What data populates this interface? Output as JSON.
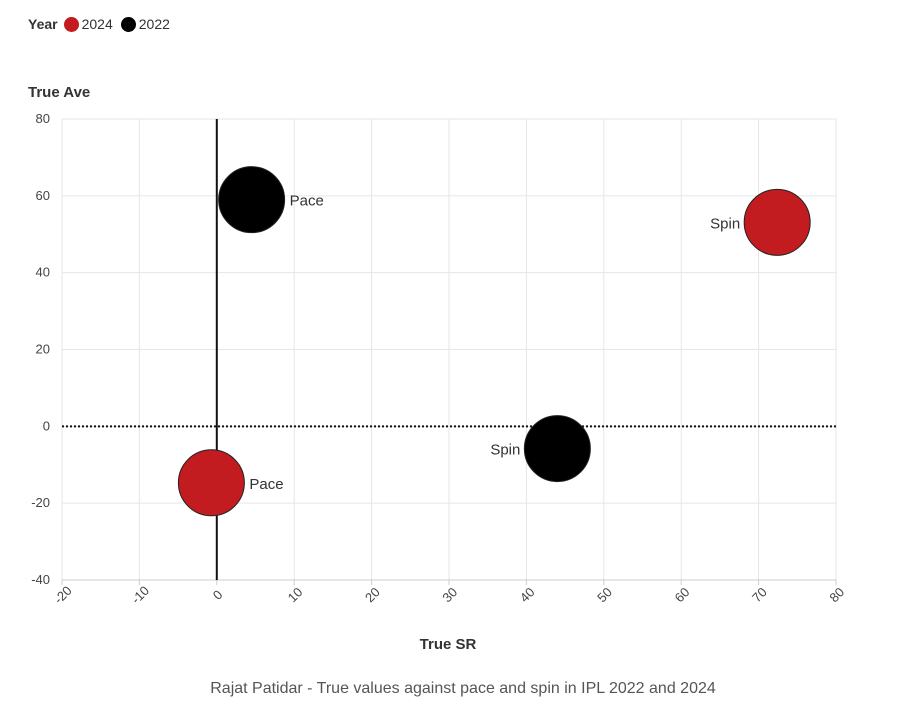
{
  "chart_data": {
    "type": "scatter",
    "xlabel": "True SR",
    "ylabel": "True Ave",
    "xlim": [
      -20,
      80
    ],
    "ylim": [
      -40,
      80
    ],
    "x_ticks": [
      -20,
      -10,
      0,
      10,
      20,
      30,
      40,
      50,
      60,
      70,
      80
    ],
    "y_ticks": [
      -40,
      -20,
      0,
      20,
      40,
      60,
      80
    ],
    "legend": {
      "title": "Year",
      "placement": "top-left",
      "entries": [
        {
          "label": "2024",
          "color": "#c21b20"
        },
        {
          "label": "2022",
          "color": "#000000"
        }
      ]
    },
    "series": [
      {
        "name": "2024",
        "color": "#c21b20",
        "points": [
          {
            "label": "Pace",
            "x": -0.7,
            "y": -14.7
          },
          {
            "label": "Spin",
            "x": 72.4,
            "y": 53.1
          }
        ]
      },
      {
        "name": "2022",
        "color": "#000000",
        "points": [
          {
            "label": "Pace",
            "x": 4.5,
            "y": 59.0
          },
          {
            "label": "Spin",
            "x": 44.0,
            "y": -5.8
          }
        ]
      }
    ],
    "reference_lines": {
      "vertical_x": 0,
      "horizontal_y": 0,
      "horizontal_style": "dotted"
    },
    "grid": true
  },
  "caption": "Rajat Patidar - True values against pace and spin in IPL 2022 and 2024"
}
